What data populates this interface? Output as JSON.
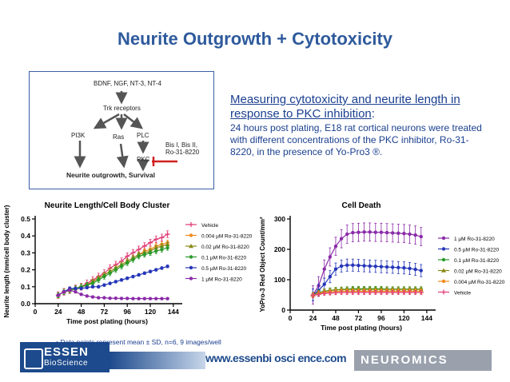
{
  "slide_title": "Neurite Outgrowth + Cytotoxicity",
  "pathway": {
    "factors": "BDNF, NGF, NT-3, NT-4",
    "receptor": "Trk receptors",
    "pi3k": "PI3K",
    "ras": "Ras",
    "plc": "PLC",
    "pkc": "PKC",
    "inhibitors_1": "Bis I, Bis II,",
    "inhibitors_2": "Ro-31-8220",
    "outcome": "Neurite outgrowth, Survival"
  },
  "description": {
    "heading": "Measuring cytotoxicity and neurite length in response to PKC inhibition",
    "heading_colon": ":",
    "body": "24 hours post plating, E18 rat cortical neurons were treated with different concentrations of the PKC inhibitor, Ro-31-8220, in the presence of Yo-Pro3 ®."
  },
  "footnote": "•   Data points represent mean ± SD, n=6, 9 images/well",
  "footer": {
    "essen_top": "ESSEN",
    "essen_bottom": "BioScience",
    "url": "www.essenbi osci ence.com",
    "neuromics": "NEUROMICS"
  },
  "chart_data": [
    {
      "type": "line",
      "title": "Neurite Length/Cell Body Cluster",
      "xlabel": "Time post plating (hours)",
      "ylabel": "Neurite length (mm/cell body cluster)",
      "xlim": [
        0,
        150
      ],
      "ylim": [
        0,
        0.5
      ],
      "xticks": [
        "0",
        "24",
        "48",
        "72",
        "96",
        "120",
        "144"
      ],
      "yticks": [
        "0.0",
        "0.1",
        "0.2",
        "0.3",
        "0.4",
        "0.5"
      ],
      "legend_position": "right",
      "x": [
        24,
        30,
        36,
        42,
        48,
        54,
        60,
        66,
        72,
        78,
        84,
        90,
        96,
        102,
        108,
        114,
        120,
        126,
        132,
        138
      ],
      "series": [
        {
          "name": "Vehicle",
          "color": "#e0407a",
          "marker": "plus",
          "error": 0.02,
          "values": [
            0.05,
            0.07,
            0.08,
            0.09,
            0.1,
            0.12,
            0.14,
            0.16,
            0.18,
            0.21,
            0.23,
            0.25,
            0.28,
            0.3,
            0.32,
            0.34,
            0.36,
            0.38,
            0.39,
            0.41
          ]
        },
        {
          "name": "0.004 µM Ro-31-8220",
          "color": "#f08c1c",
          "marker": "circle",
          "error": 0.015,
          "values": [
            0.05,
            0.07,
            0.08,
            0.09,
            0.1,
            0.11,
            0.13,
            0.15,
            0.17,
            0.19,
            0.21,
            0.23,
            0.25,
            0.27,
            0.29,
            0.31,
            0.32,
            0.34,
            0.35,
            0.36
          ]
        },
        {
          "name": "0.02 µM Ro-31-8220",
          "color": "#8a8a18",
          "marker": "triangle",
          "error": 0.015,
          "values": [
            0.05,
            0.07,
            0.08,
            0.09,
            0.1,
            0.11,
            0.13,
            0.15,
            0.17,
            0.19,
            0.21,
            0.23,
            0.25,
            0.27,
            0.29,
            0.3,
            0.31,
            0.33,
            0.34,
            0.35
          ]
        },
        {
          "name": "0.1 µM Ro-31-8220",
          "color": "#2a9a2a",
          "marker": "circle",
          "error": 0.015,
          "values": [
            0.05,
            0.07,
            0.08,
            0.09,
            0.1,
            0.11,
            0.12,
            0.14,
            0.16,
            0.18,
            0.2,
            0.22,
            0.24,
            0.26,
            0.28,
            0.29,
            0.3,
            0.31,
            0.32,
            0.33
          ]
        },
        {
          "name": "0.5 µM Ro-31-8220",
          "color": "#2536b8",
          "marker": "circle",
          "error": 0.008,
          "values": [
            0.05,
            0.07,
            0.09,
            0.09,
            0.09,
            0.095,
            0.1,
            0.1,
            0.11,
            0.12,
            0.13,
            0.14,
            0.15,
            0.16,
            0.17,
            0.18,
            0.19,
            0.2,
            0.21,
            0.22
          ]
        },
        {
          "name": "1 µM Ro-31-8220",
          "color": "#8a2aa8",
          "marker": "circle",
          "error": 0.005,
          "values": [
            0.05,
            0.07,
            0.08,
            0.07,
            0.055,
            0.045,
            0.04,
            0.035,
            0.035,
            0.032,
            0.032,
            0.031,
            0.031,
            0.03,
            0.03,
            0.03,
            0.03,
            0.03,
            0.03,
            0.03
          ]
        }
      ]
    },
    {
      "type": "line",
      "title": "Cell Death",
      "xlabel": "Time post plating (hours)",
      "ylabel": "YoPro-3 Red Object Count/mm²",
      "xlim": [
        0,
        150
      ],
      "ylim": [
        0,
        300
      ],
      "xticks": [
        "0",
        "24",
        "48",
        "72",
        "96",
        "120",
        "144"
      ],
      "yticks": [
        "0",
        "100",
        "200",
        "300"
      ],
      "legend_position": "right",
      "x": [
        24,
        30,
        36,
        42,
        48,
        54,
        60,
        66,
        72,
        78,
        84,
        90,
        96,
        102,
        108,
        114,
        120,
        126,
        132,
        138
      ],
      "series": [
        {
          "name": "1 µM Ro-31-8220",
          "color": "#8a2aa8",
          "marker": "circle",
          "error": 30,
          "values": [
            50,
            80,
            135,
            175,
            210,
            235,
            250,
            255,
            256,
            257,
            257,
            256,
            256,
            255,
            254,
            253,
            252,
            250,
            247,
            242
          ]
        },
        {
          "name": "0.5 µM Ro-31-8220",
          "color": "#2536b8",
          "marker": "circle",
          "error": 20,
          "values": [
            50,
            65,
            85,
            110,
            135,
            145,
            148,
            148,
            147,
            146,
            145,
            144,
            143,
            142,
            141,
            140,
            139,
            137,
            134,
            130
          ]
        },
        {
          "name": "0.1 µM Ro-31-8220",
          "color": "#2a9a2a",
          "marker": "circle",
          "error": 8,
          "values": [
            50,
            58,
            62,
            65,
            67,
            68,
            69,
            70,
            70,
            70,
            70,
            70,
            70,
            69,
            69,
            69,
            69,
            69,
            69,
            69
          ]
        },
        {
          "name": "0.02 µM Ro-31-8220",
          "color": "#8a8a18",
          "marker": "triangle",
          "error": 8,
          "values": [
            50,
            57,
            61,
            64,
            66,
            67,
            68,
            68,
            68,
            68,
            68,
            68,
            68,
            68,
            68,
            68,
            68,
            68,
            68,
            68
          ]
        },
        {
          "name": "0.004 µM Ro-31-8220",
          "color": "#f08c1c",
          "marker": "circle",
          "error": 8,
          "values": [
            48,
            54,
            58,
            60,
            61,
            62,
            62,
            62,
            62,
            62,
            62,
            62,
            62,
            62,
            62,
            62,
            62,
            62,
            62,
            62
          ]
        },
        {
          "name": "Vehicle",
          "color": "#e0407a",
          "marker": "plus",
          "error": 6,
          "values": [
            48,
            52,
            55,
            56,
            57,
            58,
            58,
            58,
            58,
            58,
            58,
            58,
            58,
            58,
            58,
            58,
            58,
            58,
            58,
            58
          ]
        }
      ]
    }
  ]
}
